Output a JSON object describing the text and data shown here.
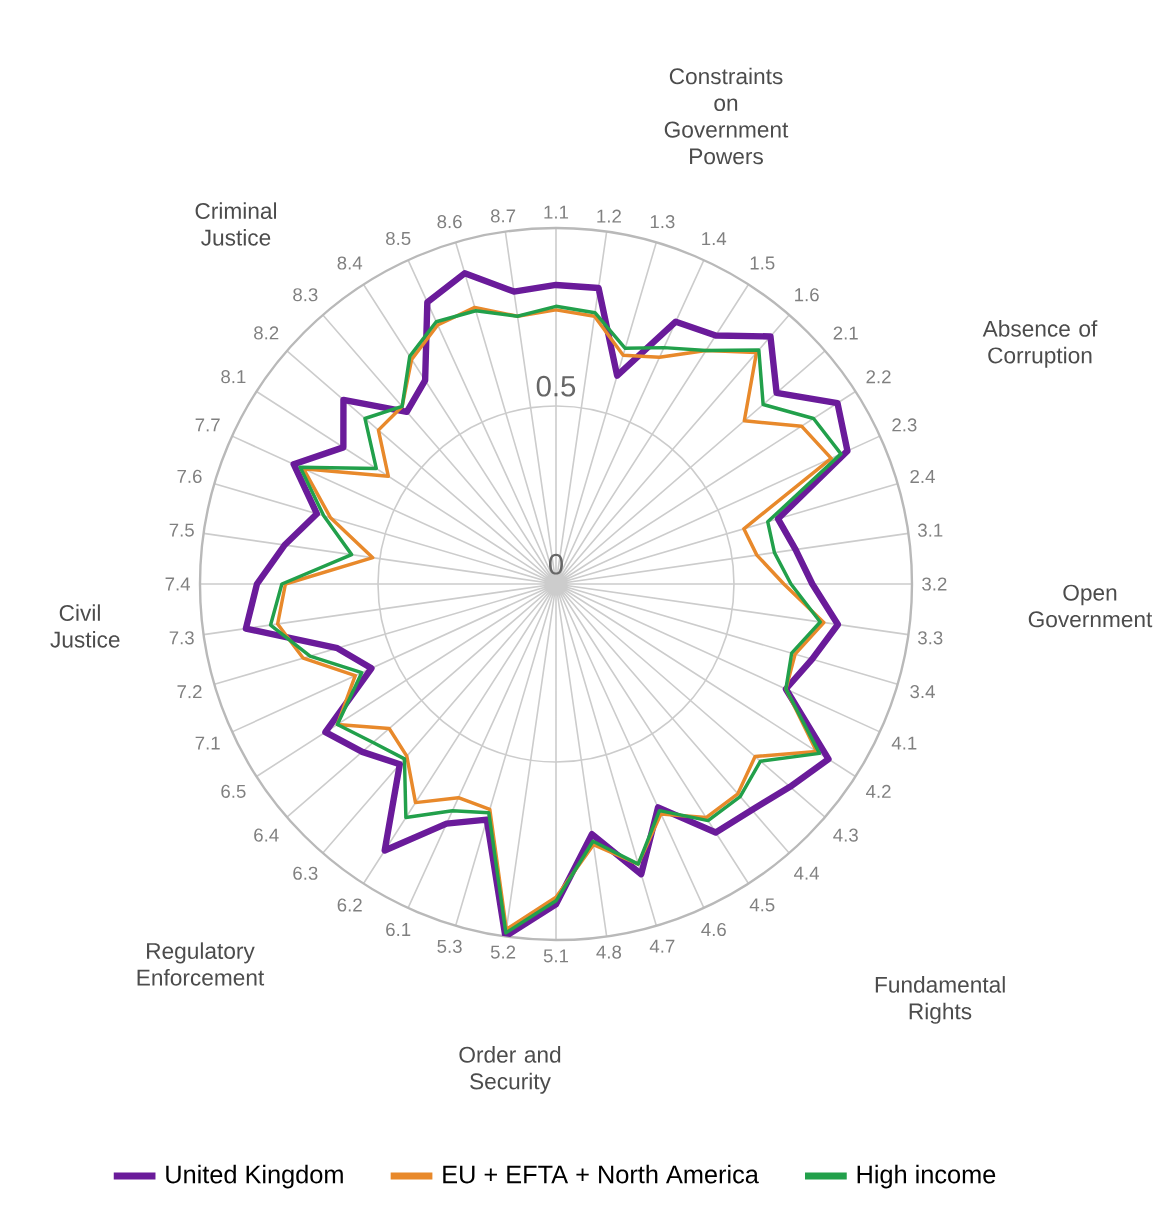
{
  "chart_data": {
    "type": "radar",
    "categories": [
      "1.1",
      "1.2",
      "1.3",
      "1.4",
      "1.5",
      "1.6",
      "2.1",
      "2.2",
      "2.3",
      "2.4",
      "3.1",
      "3.2",
      "3.3",
      "3.4",
      "4.1",
      "4.2",
      "4.3",
      "4.4",
      "4.5",
      "4.6",
      "4.7",
      "4.8",
      "5.1",
      "5.2",
      "5.3",
      "6.1",
      "6.2",
      "6.3",
      "6.4",
      "6.5",
      "7.1",
      "7.2",
      "7.3",
      "7.4",
      "7.5",
      "7.6",
      "7.7",
      "8.1",
      "8.2",
      "8.3",
      "8.4",
      "8.5",
      "8.6",
      "8.7"
    ],
    "series": [
      {
        "name": "United Kingdom",
        "color": "#6a1b9a",
        "values": [
          0.84,
          0.84,
          0.61,
          0.81,
          0.83,
          0.92,
          0.82,
          0.94,
          0.9,
          0.65,
          0.68,
          0.72,
          0.8,
          0.75,
          0.71,
          0.91,
          0.87,
          0.84,
          0.83,
          0.69,
          0.85,
          0.71,
          0.9,
          1.0,
          0.69,
          0.74,
          0.89,
          0.67,
          0.72,
          0.77,
          0.57,
          0.64,
          0.88,
          0.84,
          0.77,
          0.7,
          0.81,
          0.71,
          0.79,
          0.64,
          0.68,
          0.87,
          0.91,
          0.83
        ]
      },
      {
        "name": "EU + EFTA + North America",
        "color": "#e8892b",
        "values": [
          0.77,
          0.76,
          0.67,
          0.7,
          0.78,
          0.86,
          0.7,
          0.82,
          0.85,
          0.55,
          0.57,
          0.64,
          0.76,
          0.7,
          0.71,
          0.87,
          0.74,
          0.78,
          0.78,
          0.71,
          0.82,
          0.74,
          0.88,
          0.98,
          0.66,
          0.66,
          0.73,
          0.64,
          0.62,
          0.73,
          0.62,
          0.74,
          0.79,
          0.76,
          0.52,
          0.66,
          0.78,
          0.56,
          0.66,
          0.66,
          0.75,
          0.8,
          0.81,
          0.76
        ]
      },
      {
        "name": "High income",
        "color": "#22a04b",
        "values": [
          0.78,
          0.77,
          0.69,
          0.73,
          0.78,
          0.87,
          0.77,
          0.86,
          0.88,
          0.62,
          0.62,
          0.66,
          0.75,
          0.69,
          0.71,
          0.88,
          0.76,
          0.79,
          0.79,
          0.7,
          0.82,
          0.73,
          0.89,
          0.99,
          0.67,
          0.7,
          0.78,
          0.65,
          0.68,
          0.73,
          0.6,
          0.72,
          0.81,
          0.77,
          0.58,
          0.68,
          0.79,
          0.6,
          0.71,
          0.66,
          0.76,
          0.81,
          0.8,
          0.76
        ]
      }
    ],
    "ylim": [
      0,
      1
    ],
    "yticks": [
      0,
      0.5
    ],
    "grid": true,
    "legend": "bottom",
    "annotations": [
      "Constraints on Government Powers",
      "Absence of Corruption",
      "Open Government",
      "Fundamental Rights",
      "Order and Security",
      "Regulatory Enforcement",
      "Civil Justice",
      "Criminal Justice"
    ]
  }
}
